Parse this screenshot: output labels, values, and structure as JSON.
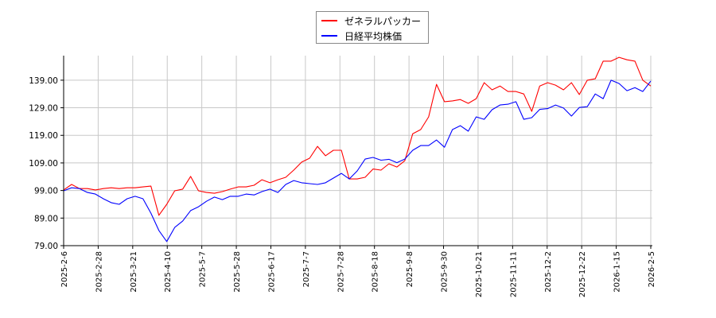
{
  "chart_data": {
    "type": "line",
    "title": "",
    "xlabel": "",
    "ylabel": "",
    "ylim": [
      79,
      147.9
    ],
    "y_ticks": [
      "79.00",
      "89.00",
      "99.00",
      "109.00",
      "119.00",
      "129.00",
      "139.00"
    ],
    "x_ticks": [
      "2025-2-6",
      "2025-2-28",
      "2025-3-21",
      "2025-4-10",
      "2025-5-7",
      "2025-5-28",
      "2025-6-17",
      "2025-7-7",
      "2025-7-28",
      "2025-8-18",
      "2025-9-8",
      "2025-9-30",
      "2025-10-21",
      "2025-11-11",
      "2025-12-2",
      "2025-12-22",
      "2026-1-15",
      "2026-2-5"
    ],
    "grid": true,
    "legend_position": "top-center",
    "series": [
      {
        "name": "ゼネラルパッカー",
        "color": "#ff0000",
        "values": [
          99.2,
          101.2,
          99.7,
          99.7,
          99.2,
          99.7,
          100.0,
          99.7,
          100.0,
          100.0,
          100.3,
          100.6,
          90.0,
          94.0,
          98.9,
          99.5,
          104.1,
          98.9,
          98.3,
          98.0,
          98.6,
          99.5,
          100.3,
          100.3,
          100.9,
          102.9,
          101.8,
          102.9,
          103.8,
          106.4,
          109.3,
          110.7,
          115.0,
          111.6,
          113.6,
          113.6,
          103.2,
          103.2,
          103.8,
          106.8,
          106.4,
          108.7,
          107.5,
          109.8,
          119.6,
          121.1,
          125.7,
          137.5,
          131.2,
          131.5,
          132.0,
          130.6,
          132.3,
          138.1,
          135.5,
          136.9,
          134.9,
          134.9,
          134.0,
          127.7,
          136.9,
          138.1,
          137.2,
          135.5,
          138.1,
          133.8,
          139.0,
          139.5,
          145.9,
          145.9,
          147.3,
          146.4,
          145.9,
          139.0,
          136.9
        ]
      },
      {
        "name": "日経平均株価",
        "color": "#0000ff",
        "values": [
          98.9,
          100.0,
          99.7,
          98.3,
          97.7,
          96.0,
          94.6,
          94.0,
          96.0,
          96.9,
          96.0,
          90.8,
          84.5,
          80.5,
          85.6,
          87.9,
          91.7,
          93.1,
          95.1,
          96.6,
          95.7,
          96.9,
          96.9,
          97.7,
          97.4,
          98.6,
          99.5,
          98.3,
          101.2,
          102.6,
          101.8,
          101.5,
          101.2,
          101.8,
          103.5,
          105.2,
          103.2,
          106.1,
          110.4,
          111.0,
          110.0,
          110.3,
          109.1,
          110.4,
          113.6,
          115.3,
          115.3,
          117.3,
          114.7,
          121.1,
          122.5,
          120.5,
          125.7,
          124.8,
          128.3,
          130.0,
          130.3,
          131.2,
          124.8,
          125.4,
          128.4,
          128.7,
          130.0,
          128.9,
          126.0,
          129.1,
          129.4,
          134.0,
          132.3,
          139.0,
          137.8,
          135.2,
          136.3,
          134.9,
          138.7
        ]
      }
    ]
  }
}
